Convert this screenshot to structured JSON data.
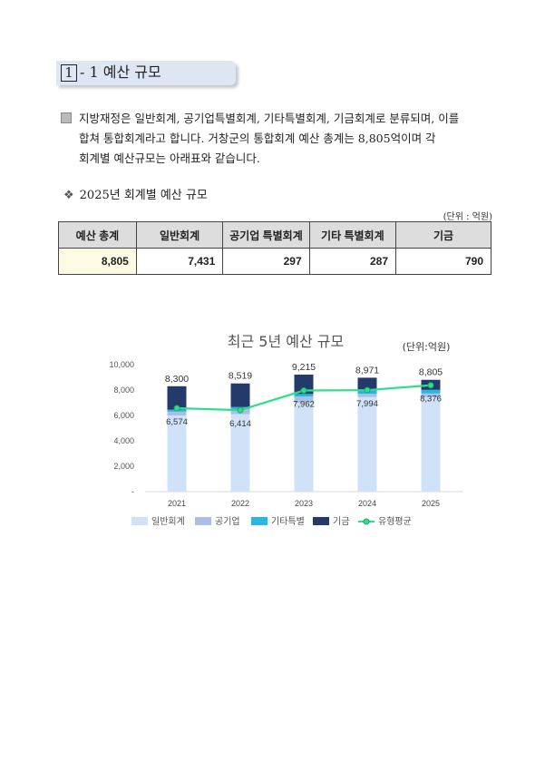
{
  "section": {
    "number": "1",
    "title": "- 1 예산 규모"
  },
  "paragraph": {
    "line1": "지방재정은 일반회계, 공기업특별회계, 기타특별회계, 기금회계로 분류되며, 이를",
    "line2": "합쳐 통합회계라고 합니다. 거창군의 통합회계 예산 총계는 8,805억이며 각",
    "line3": "회계별 예산규모는 아래표와 같습니다."
  },
  "subsection": {
    "title": "2025년 회계별 예산 규모",
    "unit": "(단위 : 억원)"
  },
  "budget_table": {
    "headers": [
      "예산 총계",
      "일반회계",
      "공기업 특별회계",
      "기타 특별회계",
      "기금"
    ],
    "values": [
      "8,805",
      "7,431",
      "297",
      "287",
      "790"
    ]
  },
  "chart_data": {
    "type": "bar",
    "title": "최근 5년 예산 규모",
    "unit": "(단위:억원)",
    "categories": [
      "2021",
      "2022",
      "2023",
      "2024",
      "2025"
    ],
    "ylim": [
      0,
      10000
    ],
    "yticks": [
      "-",
      "2,000",
      "4,000",
      "6,000",
      "8,000",
      "10,000"
    ],
    "ytick_values": [
      0,
      2000,
      4000,
      6000,
      8000,
      10000
    ],
    "stacked": true,
    "series": [
      {
        "name": "일반회계",
        "values": [
          6000,
          6100,
          7000,
          7450,
          7431
        ],
        "color": "#cfe2f7"
      },
      {
        "name": "공기업",
        "values": [
          300,
          380,
          500,
          250,
          297
        ],
        "color": "#a9bfe6"
      },
      {
        "name": "기타특별",
        "values": [
          150,
          180,
          190,
          260,
          287
        ],
        "color": "#29b6e0"
      },
      {
        "name": "기금",
        "values": [
          1850,
          1859,
          1525,
          1011,
          790
        ],
        "color": "#243a6b"
      }
    ],
    "totals": [
      8300,
      8519,
      9215,
      8971,
      8805
    ],
    "total_labels": [
      "8,300",
      "8,519",
      "9,215",
      "8,971",
      "8,805"
    ],
    "line": {
      "name": "유형평균",
      "values": [
        6574,
        6414,
        7962,
        7994,
        8376
      ],
      "labels": [
        "6,574",
        "6,414",
        "7,962",
        "7,994",
        "8,376"
      ],
      "color": "#2de08b"
    }
  }
}
